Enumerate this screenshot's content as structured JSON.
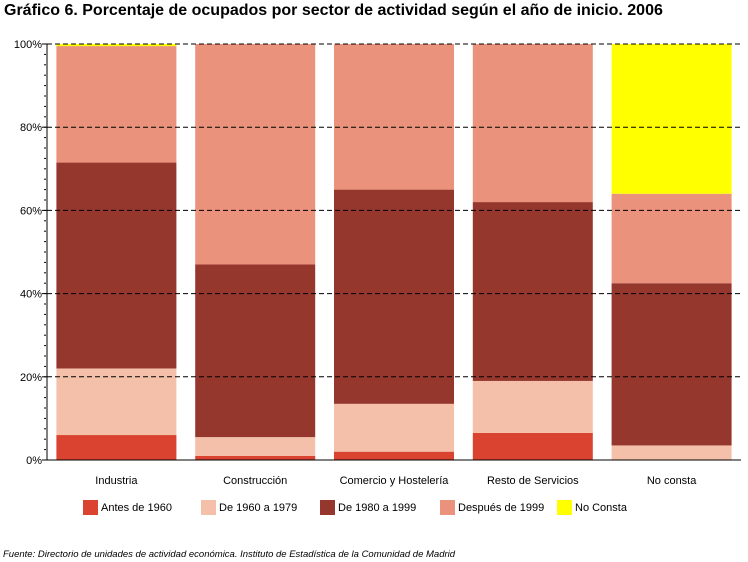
{
  "chart_data": {
    "type": "bar",
    "stacked": true,
    "title": "Gráfico 6. Porcentaje de ocupados por sector de actividad según el año de inicio. 2006",
    "categories": [
      "Industria",
      "Construcción",
      "Comercio y Hostelería",
      "Resto de Servicios",
      "No consta"
    ],
    "series": [
      {
        "name": "Antes de 1960",
        "color": "#d9432f",
        "values": [
          6,
          1,
          2,
          6.5,
          0
        ]
      },
      {
        "name": "De 1960 a 1979",
        "color": "#f4c0aa",
        "values": [
          16,
          4.5,
          11.5,
          12.5,
          3.5
        ]
      },
      {
        "name": "De 1980 a 1999",
        "color": "#96372d",
        "values": [
          49.5,
          41.5,
          51.5,
          43,
          39
        ]
      },
      {
        "name": "Después de 1999",
        "color": "#ea927b",
        "values": [
          28,
          53,
          35,
          38,
          21.5
        ]
      },
      {
        "name": "No Consta",
        "color": "#ffff00",
        "values": [
          0.5,
          0,
          0,
          0,
          36
        ]
      }
    ],
    "ylim": [
      0,
      100
    ],
    "yticks": [
      "0%",
      "20%",
      "40%",
      "60%",
      "80%",
      "100%"
    ],
    "xlabel": "",
    "ylabel": "",
    "legend_position": "bottom"
  },
  "source_note": "Fuente: Directorio de unidades de actividad económica. Instituto de Estadística de la Comunidad de Madrid"
}
